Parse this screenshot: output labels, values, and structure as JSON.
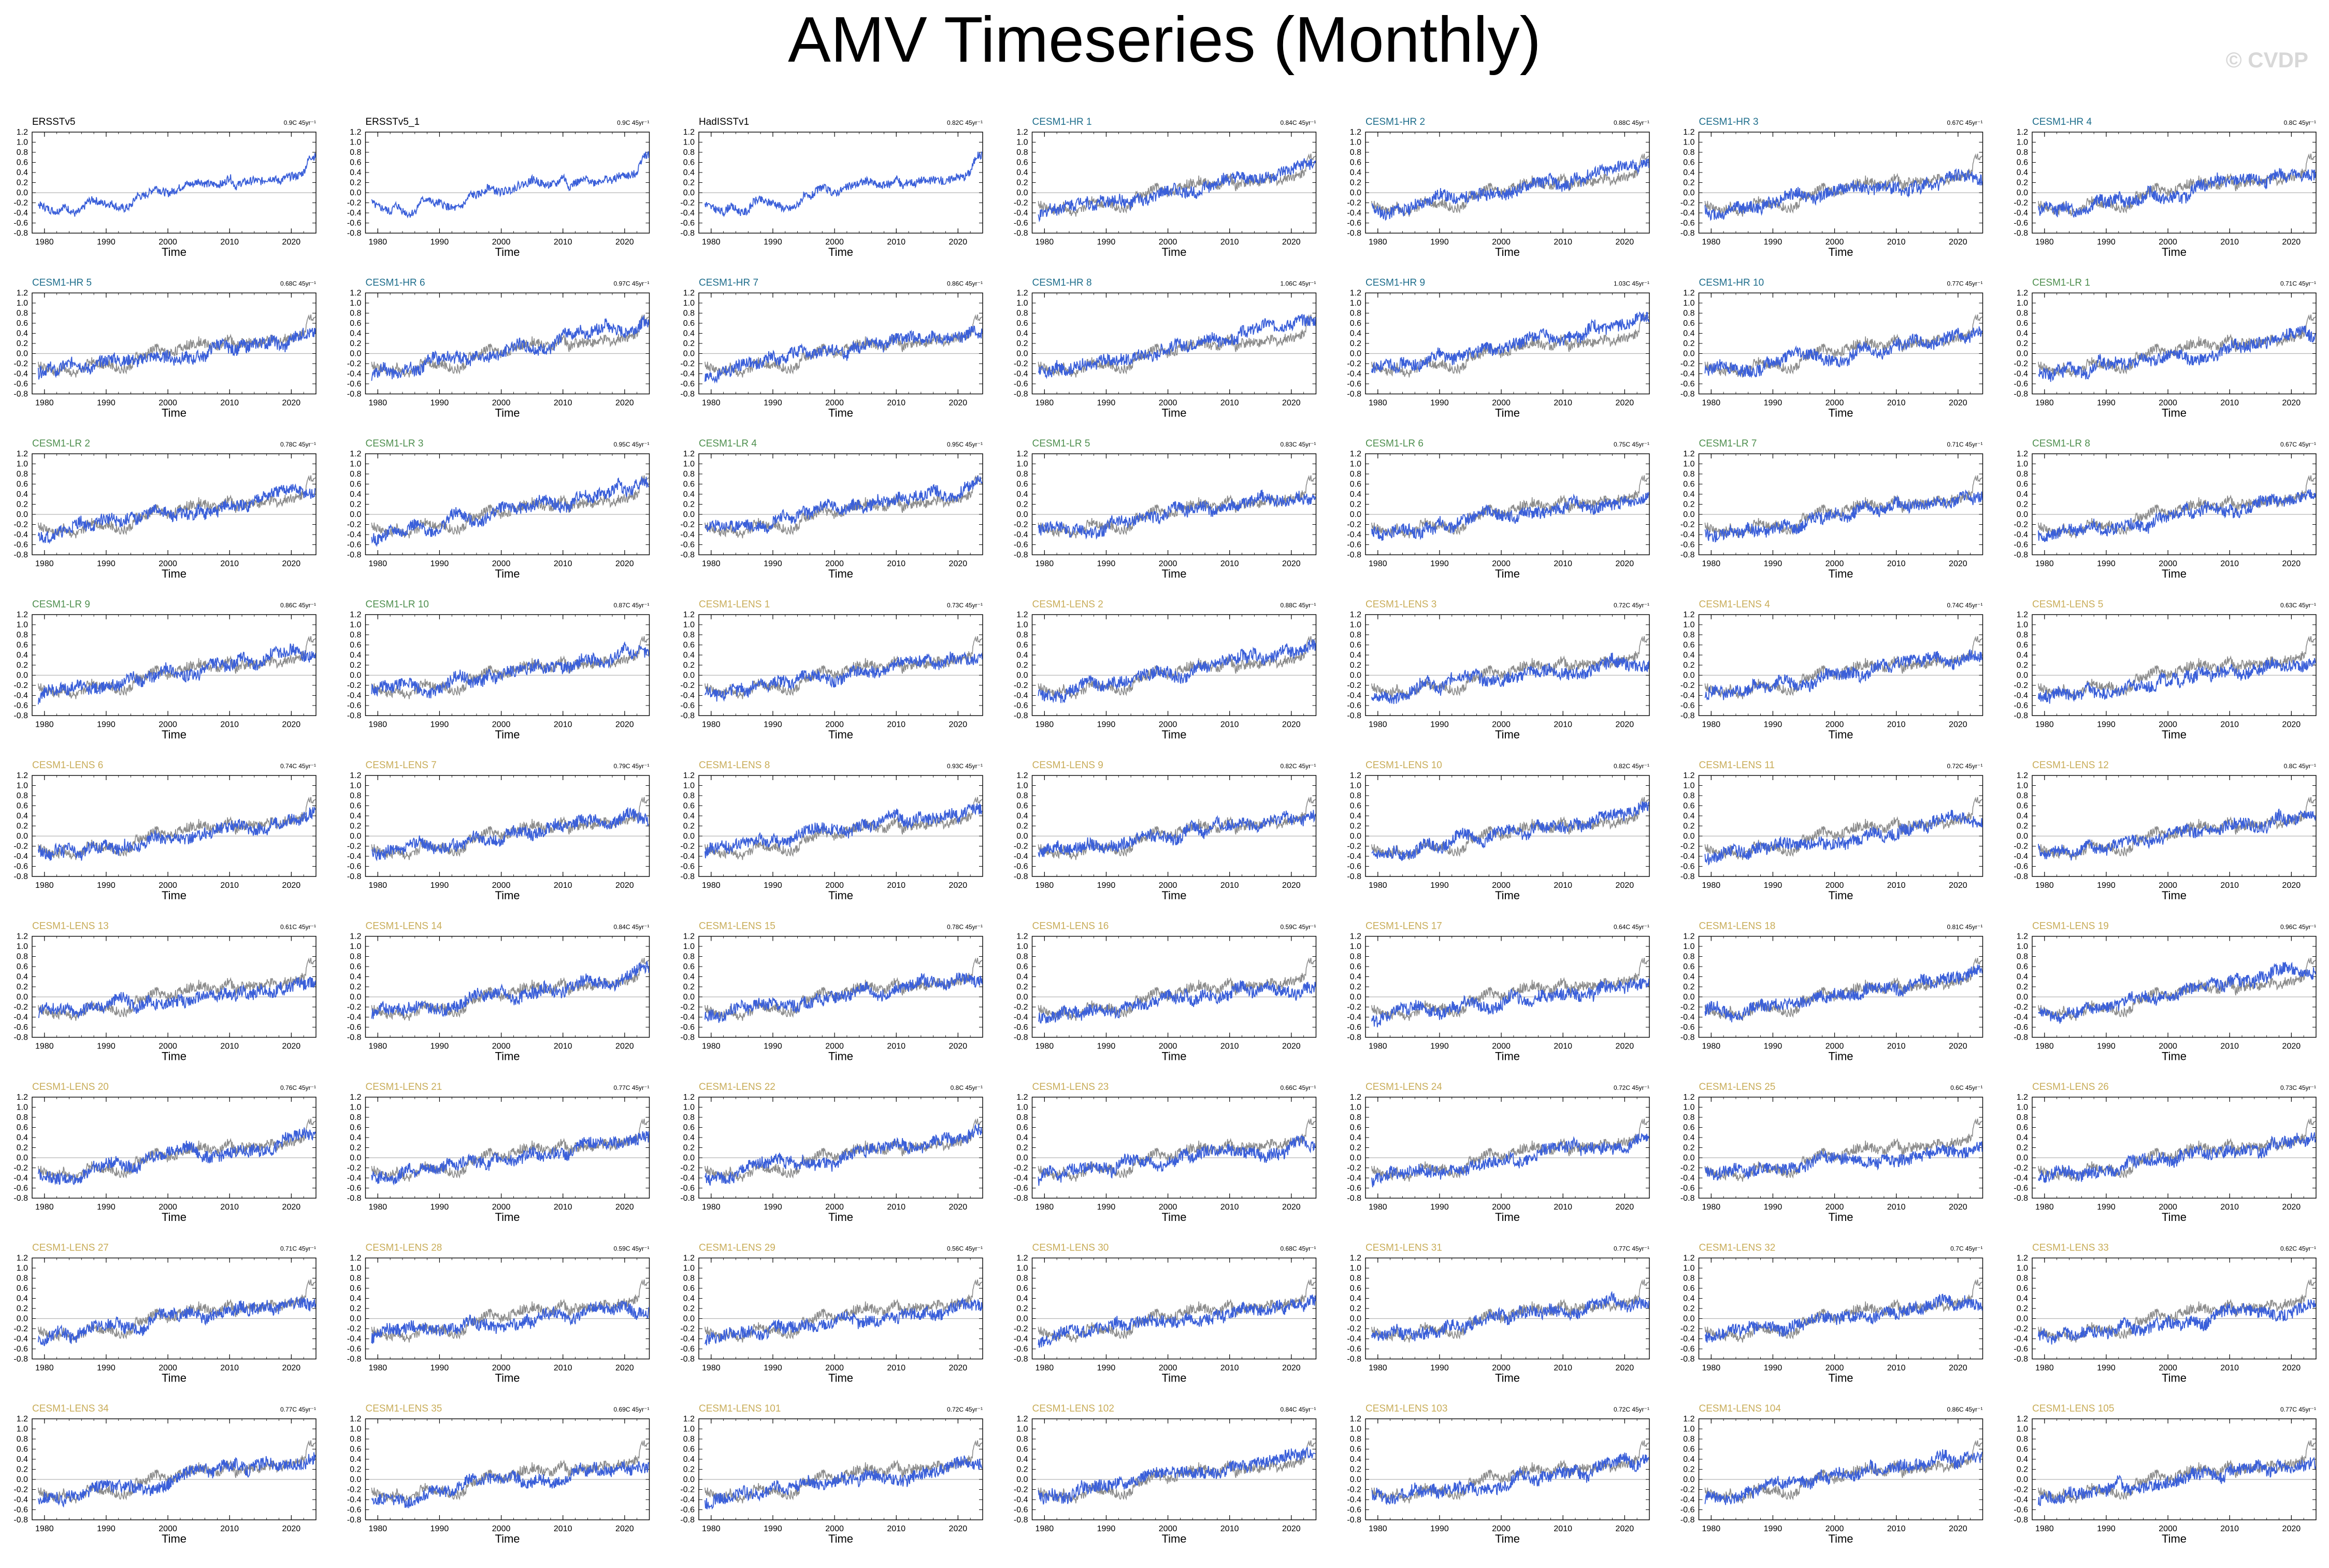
{
  "page": {
    "title": "AMV Timeseries (Monthly)",
    "credit": "© CVDP"
  },
  "colors": {
    "observation_title": "#000000",
    "cesm1_hr": "#1f6e8c",
    "cesm1_lr": "#4f8f4f",
    "cesm1_lens": "#c9ad5a",
    "simulation_line": "#3a5fd9",
    "observation_line": "#8c8c8c",
    "zero_line": "#b5b5b5"
  },
  "chart_data": {
    "type": "line",
    "layout": "grid of small-multiple panels, 7 columns x 9 rows",
    "shared_axes": {
      "xlabel": "Time",
      "xlim": [
        1978,
        2024
      ],
      "x_ticks": [
        1980,
        1990,
        2000,
        2010,
        2020
      ],
      "x_tick_labels": [
        "1980",
        "1990",
        "2000",
        "2010",
        "2020"
      ],
      "ylim": [
        -0.8,
        1.2
      ],
      "y_ticks": [
        -0.8,
        -0.6,
        -0.4,
        -0.2,
        0.0,
        0.2,
        0.4,
        0.6,
        0.8,
        1.0,
        1.2
      ],
      "y_tick_labels": [
        "-0.8",
        "-0.6",
        "-0.4",
        "-0.2",
        "0.0",
        "0.2",
        "0.4",
        "0.6",
        "0.8",
        "1.0",
        "1.2"
      ],
      "zero_line": true,
      "grid": false
    },
    "series_note": "approximate annual values read from the plots; blue = dataset/member, gray = observational reference",
    "years": [
      1979,
      1980,
      1981,
      1982,
      1983,
      1984,
      1985,
      1986,
      1987,
      1988,
      1989,
      1990,
      1991,
      1992,
      1993,
      1994,
      1995,
      1996,
      1997,
      1998,
      1999,
      2000,
      2001,
      2002,
      2003,
      2004,
      2005,
      2006,
      2007,
      2008,
      2009,
      2010,
      2011,
      2012,
      2013,
      2014,
      2015,
      2016,
      2017,
      2018,
      2019,
      2020,
      2021,
      2022,
      2023
    ],
    "reference_series": {
      "name": "Observations",
      "values": [
        -0.22,
        -0.28,
        -0.32,
        -0.38,
        -0.26,
        -0.34,
        -0.42,
        -0.36,
        -0.18,
        -0.12,
        -0.22,
        -0.2,
        -0.24,
        -0.3,
        -0.32,
        -0.25,
        -0.05,
        -0.08,
        0.02,
        0.12,
        0.05,
        0.0,
        0.04,
        0.1,
        0.16,
        0.18,
        0.24,
        0.2,
        0.16,
        0.14,
        0.18,
        0.32,
        0.12,
        0.22,
        0.2,
        0.26,
        0.2,
        0.25,
        0.28,
        0.22,
        0.3,
        0.34,
        0.32,
        0.42,
        0.74
      ]
    },
    "panels": [
      {
        "title": "ERSSTv5",
        "trend": "0.9C 45yr⁻¹",
        "group": "obs",
        "show_reference": false
      },
      {
        "title": "ERSSTv5_1",
        "trend": "0.9C 45yr⁻¹",
        "group": "obs",
        "show_reference": false
      },
      {
        "title": "HadISSTv1",
        "trend": "0.82C 45yr⁻¹",
        "group": "obs",
        "show_reference": false
      },
      {
        "title": "CESM1-HR 1",
        "trend": "0.84C 45yr⁻¹",
        "group": "hr",
        "show_reference": true
      },
      {
        "title": "CESM1-HR 2",
        "trend": "0.88C 45yr⁻¹",
        "group": "hr",
        "show_reference": true
      },
      {
        "title": "CESM1-HR 3",
        "trend": "0.67C 45yr⁻¹",
        "group": "hr",
        "show_reference": true
      },
      {
        "title": "CESM1-HR 4",
        "trend": "0.8C 45yr⁻¹",
        "group": "hr",
        "show_reference": true
      },
      {
        "title": "CESM1-HR 5",
        "trend": "0.68C 45yr⁻¹",
        "group": "hr",
        "show_reference": true
      },
      {
        "title": "CESM1-HR 6",
        "trend": "0.97C 45yr⁻¹",
        "group": "hr",
        "show_reference": true
      },
      {
        "title": "CESM1-HR 7",
        "trend": "0.86C 45yr⁻¹",
        "group": "hr",
        "show_reference": true
      },
      {
        "title": "CESM1-HR 8",
        "trend": "1.06C 45yr⁻¹",
        "group": "hr",
        "show_reference": true
      },
      {
        "title": "CESM1-HR 9",
        "trend": "1.03C 45yr⁻¹",
        "group": "hr",
        "show_reference": true
      },
      {
        "title": "CESM1-HR 10",
        "trend": "0.77C 45yr⁻¹",
        "group": "hr",
        "show_reference": true
      },
      {
        "title": "CESM1-LR 1",
        "trend": "0.71C 45yr⁻¹",
        "group": "lr",
        "show_reference": true
      },
      {
        "title": "CESM1-LR 2",
        "trend": "0.78C 45yr⁻¹",
        "group": "lr",
        "show_reference": true
      },
      {
        "title": "CESM1-LR 3",
        "trend": "0.95C 45yr⁻¹",
        "group": "lr",
        "show_reference": true
      },
      {
        "title": "CESM1-LR 4",
        "trend": "0.95C 45yr⁻¹",
        "group": "lr",
        "show_reference": true
      },
      {
        "title": "CESM1-LR 5",
        "trend": "0.83C 45yr⁻¹",
        "group": "lr",
        "show_reference": true
      },
      {
        "title": "CESM1-LR 6",
        "trend": "0.75C 45yr⁻¹",
        "group": "lr",
        "show_reference": true
      },
      {
        "title": "CESM1-LR 7",
        "trend": "0.71C 45yr⁻¹",
        "group": "lr",
        "show_reference": true
      },
      {
        "title": "CESM1-LR 8",
        "trend": "0.67C 45yr⁻¹",
        "group": "lr",
        "show_reference": true
      },
      {
        "title": "CESM1-LR 9",
        "trend": "0.86C 45yr⁻¹",
        "group": "lr",
        "show_reference": true
      },
      {
        "title": "CESM1-LR 10",
        "trend": "0.87C 45yr⁻¹",
        "group": "lr",
        "show_reference": true
      },
      {
        "title": "CESM1-LENS 1",
        "trend": "0.73C 45yr⁻¹",
        "group": "lens",
        "show_reference": true
      },
      {
        "title": "CESM1-LENS 2",
        "trend": "0.88C 45yr⁻¹",
        "group": "lens",
        "show_reference": true
      },
      {
        "title": "CESM1-LENS 3",
        "trend": "0.72C 45yr⁻¹",
        "group": "lens",
        "show_reference": true
      },
      {
        "title": "CESM1-LENS 4",
        "trend": "0.74C 45yr⁻¹",
        "group": "lens",
        "show_reference": true
      },
      {
        "title": "CESM1-LENS 5",
        "trend": "0.63C 45yr⁻¹",
        "group": "lens",
        "show_reference": true
      },
      {
        "title": "CESM1-LENS 6",
        "trend": "0.74C 45yr⁻¹",
        "group": "lens",
        "show_reference": true
      },
      {
        "title": "CESM1-LENS 7",
        "trend": "0.79C 45yr⁻¹",
        "group": "lens",
        "show_reference": true
      },
      {
        "title": "CESM1-LENS 8",
        "trend": "0.93C 45yr⁻¹",
        "group": "lens",
        "show_reference": true
      },
      {
        "title": "CESM1-LENS 9",
        "trend": "0.82C 45yr⁻¹",
        "group": "lens",
        "show_reference": true
      },
      {
        "title": "CESM1-LENS 10",
        "trend": "0.82C 45yr⁻¹",
        "group": "lens",
        "show_reference": true
      },
      {
        "title": "CESM1-LENS 11",
        "trend": "0.72C 45yr⁻¹",
        "group": "lens",
        "show_reference": true
      },
      {
        "title": "CESM1-LENS 12",
        "trend": "0.8C 45yr⁻¹",
        "group": "lens",
        "show_reference": true
      },
      {
        "title": "CESM1-LENS 13",
        "trend": "0.61C 45yr⁻¹",
        "group": "lens",
        "show_reference": true
      },
      {
        "title": "CESM1-LENS 14",
        "trend": "0.84C 45yr⁻¹",
        "group": "lens",
        "show_reference": true
      },
      {
        "title": "CESM1-LENS 15",
        "trend": "0.78C 45yr⁻¹",
        "group": "lens",
        "show_reference": true
      },
      {
        "title": "CESM1-LENS 16",
        "trend": "0.59C 45yr⁻¹",
        "group": "lens",
        "show_reference": true
      },
      {
        "title": "CESM1-LENS 17",
        "trend": "0.64C 45yr⁻¹",
        "group": "lens",
        "show_reference": true
      },
      {
        "title": "CESM1-LENS 18",
        "trend": "0.81C 45yr⁻¹",
        "group": "lens",
        "show_reference": true
      },
      {
        "title": "CESM1-LENS 19",
        "trend": "0.96C 45yr⁻¹",
        "group": "lens",
        "show_reference": true
      },
      {
        "title": "CESM1-LENS 20",
        "trend": "0.76C 45yr⁻¹",
        "group": "lens",
        "show_reference": true
      },
      {
        "title": "CESM1-LENS 21",
        "trend": "0.77C 45yr⁻¹",
        "group": "lens",
        "show_reference": true
      },
      {
        "title": "CESM1-LENS 22",
        "trend": "0.8C 45yr⁻¹",
        "group": "lens",
        "show_reference": true
      },
      {
        "title": "CESM1-LENS 23",
        "trend": "0.66C 45yr⁻¹",
        "group": "lens",
        "show_reference": true
      },
      {
        "title": "CESM1-LENS 24",
        "trend": "0.72C 45yr⁻¹",
        "group": "lens",
        "show_reference": true
      },
      {
        "title": "CESM1-LENS 25",
        "trend": "0.6C 45yr⁻¹",
        "group": "lens",
        "show_reference": true
      },
      {
        "title": "CESM1-LENS 26",
        "trend": "0.73C 45yr⁻¹",
        "group": "lens",
        "show_reference": true
      },
      {
        "title": "CESM1-LENS 27",
        "trend": "0.71C 45yr⁻¹",
        "group": "lens",
        "show_reference": true
      },
      {
        "title": "CESM1-LENS 28",
        "trend": "0.59C 45yr⁻¹",
        "group": "lens",
        "show_reference": true
      },
      {
        "title": "CESM1-LENS 29",
        "trend": "0.56C 45yr⁻¹",
        "group": "lens",
        "show_reference": true
      },
      {
        "title": "CESM1-LENS 30",
        "trend": "0.68C 45yr⁻¹",
        "group": "lens",
        "show_reference": true
      },
      {
        "title": "CESM1-LENS 31",
        "trend": "0.77C 45yr⁻¹",
        "group": "lens",
        "show_reference": true
      },
      {
        "title": "CESM1-LENS 32",
        "trend": "0.7C 45yr⁻¹",
        "group": "lens",
        "show_reference": true
      },
      {
        "title": "CESM1-LENS 33",
        "trend": "0.62C 45yr⁻¹",
        "group": "lens",
        "show_reference": true
      },
      {
        "title": "CESM1-LENS 34",
        "trend": "0.77C 45yr⁻¹",
        "group": "lens",
        "show_reference": true
      },
      {
        "title": "CESM1-LENS 35",
        "trend": "0.69C 45yr⁻¹",
        "group": "lens",
        "show_reference": true
      },
      {
        "title": "CESM1-LENS 101",
        "trend": "0.72C 45yr⁻¹",
        "group": "lens",
        "show_reference": true
      },
      {
        "title": "CESM1-LENS 102",
        "trend": "0.84C 45yr⁻¹",
        "group": "lens",
        "show_reference": true
      },
      {
        "title": "CESM1-LENS 103",
        "trend": "0.72C 45yr⁻¹",
        "group": "lens",
        "show_reference": true
      },
      {
        "title": "CESM1-LENS 104",
        "trend": "0.86C 45yr⁻¹",
        "group": "lens",
        "show_reference": true
      },
      {
        "title": "CESM1-LENS 105",
        "trend": "0.77C 45yr⁻¹",
        "group": "lens",
        "show_reference": true
      }
    ]
  }
}
